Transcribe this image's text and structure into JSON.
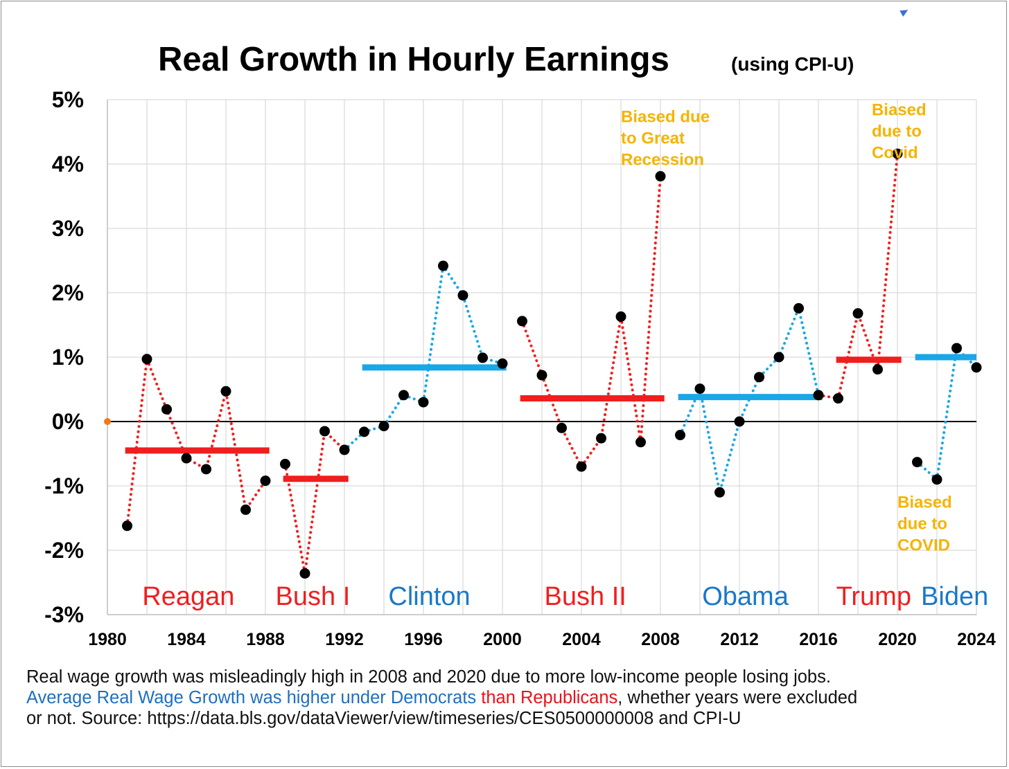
{
  "chart_data": {
    "type": "line",
    "title": "Real Growth in Hourly Earnings",
    "subtitle": "(using CPI-U)",
    "xlim": [
      1980,
      2024
    ],
    "ylim": [
      -3,
      5
    ],
    "x_ticks": [
      1980,
      1984,
      1988,
      1992,
      1996,
      2000,
      2004,
      2008,
      2012,
      2016,
      2020,
      2024
    ],
    "x_tick_labels": [
      "1980",
      "1984",
      "1988",
      "1992",
      "1996",
      "2000",
      "2004",
      "2008",
      "2012",
      "2016",
      "2020",
      "2024"
    ],
    "y_ticks": [
      -3,
      -2,
      -1,
      0,
      1,
      2,
      3,
      4,
      5
    ],
    "y_tick_labels": [
      "-3%",
      "-2%",
      "-1%",
      "0%",
      "1%",
      "2%",
      "3%",
      "4%",
      "5%"
    ],
    "grid": true,
    "series": [
      {
        "party": "R",
        "color": "#f01e1e",
        "x": [
          1981,
          1982,
          1983,
          1984,
          1985,
          1986,
          1987,
          1988
        ],
        "y": [
          -1.62,
          0.97,
          0.19,
          -0.57,
          -0.74,
          0.47,
          -1.37,
          -0.92
        ]
      },
      {
        "party": "R",
        "color": "#f01e1e",
        "x": [
          1989,
          1990,
          1991,
          1992
        ],
        "y": [
          -0.66,
          -2.36,
          -0.15,
          -0.44
        ]
      },
      {
        "party": "D",
        "color": "#1aa7e6",
        "x": [
          1993,
          1994,
          1995,
          1996,
          1997,
          1998,
          1999,
          2000
        ],
        "y": [
          -0.16,
          -0.07,
          0.41,
          0.3,
          2.42,
          1.96,
          0.99,
          0.9
        ]
      },
      {
        "party": "R",
        "color": "#f01e1e",
        "x": [
          2001,
          2002,
          2003,
          2004,
          2005,
          2006,
          2007,
          2008
        ],
        "y": [
          1.56,
          0.72,
          -0.1,
          -0.7,
          -0.26,
          1.63,
          -0.32,
          3.81
        ]
      },
      {
        "party": "D",
        "color": "#1aa7e6",
        "x": [
          2009,
          2010,
          2011,
          2012,
          2013,
          2014,
          2015,
          2016
        ],
        "y": [
          -0.21,
          0.51,
          -1.1,
          0.0,
          0.69,
          1.0,
          1.76,
          0.41
        ]
      },
      {
        "party": "R",
        "color": "#f01e1e",
        "x": [
          2017,
          2018,
          2019,
          2020
        ],
        "y": [
          0.36,
          1.68,
          0.81,
          4.16
        ]
      },
      {
        "party": "D",
        "color": "#1aa7e6",
        "x": [
          2021,
          2022,
          2023,
          2024
        ],
        "y": [
          -0.63,
          -0.9,
          1.14,
          0.84
        ]
      }
    ],
    "averages": [
      {
        "color": "#f01e1e",
        "x_start": 1980.9,
        "x_end": 1988.2,
        "value": -0.45
      },
      {
        "color": "#f01e1e",
        "x_start": 1988.9,
        "x_end": 1992.2,
        "value": -0.89
      },
      {
        "color": "#1aa7e6",
        "x_start": 1992.9,
        "x_end": 2000.2,
        "value": 0.84
      },
      {
        "color": "#f01e1e",
        "x_start": 2000.9,
        "x_end": 2008.2,
        "value": 0.36
      },
      {
        "color": "#1aa7e6",
        "x_start": 2008.9,
        "x_end": 2016.2,
        "value": 0.38
      },
      {
        "color": "#f01e1e",
        "x_start": 2016.9,
        "x_end": 2020.2,
        "value": 0.96
      },
      {
        "color": "#1aa7e6",
        "x_start": 2020.9,
        "x_end": 2024.0,
        "value": 1.0
      }
    ],
    "origin_marker": {
      "x": 1980,
      "y": 0,
      "color": "#f07a1a"
    },
    "eras": [
      {
        "label": "Reagan",
        "color": "#f01e1e",
        "x": 1984.1,
        "size": 38
      },
      {
        "label": "Bush I",
        "color": "#f01e1e",
        "x": 1990.4,
        "size": 32
      },
      {
        "label": "Clinton",
        "color": "#1a78c8",
        "x": 1996.3,
        "size": 38
      },
      {
        "label": "Bush II",
        "color": "#f01e1e",
        "x": 2004.2,
        "size": 38
      },
      {
        "label": "Obama",
        "color": "#1a78c8",
        "x": 2012.3,
        "size": 38
      },
      {
        "label": "Trump",
        "color": "#f01e1e",
        "x": 2018.8,
        "size": 32
      },
      {
        "label": "Biden",
        "color": "#1a78c8",
        "x": 2022.9,
        "size": 32
      }
    ],
    "annotations": [
      {
        "lines": [
          "Biased due",
          "to Great",
          "Recession"
        ],
        "x": 2006.0,
        "y": 4.65
      },
      {
        "lines": [
          "Biased",
          "due to",
          "Covid"
        ],
        "x": 2018.7,
        "y": 4.76
      },
      {
        "lines": [
          "Biased",
          "due to",
          "COVID"
        ],
        "x": 2020.0,
        "y": -1.34
      }
    ]
  },
  "footnote": {
    "line1": "Real wage growth was misleadingly high in 2008 and 2020 due to more low-income people losing jobs.",
    "line2_blue": "Average Real Wage Growth was higher under Democrats",
    "line2_red": " than Republicans",
    "line2_rest": ", whether years were excluded",
    "line3": "or not. Source: https://data.bls.gov/dataViewer/view/timeseries/CES0500000008 and CPI-U"
  }
}
